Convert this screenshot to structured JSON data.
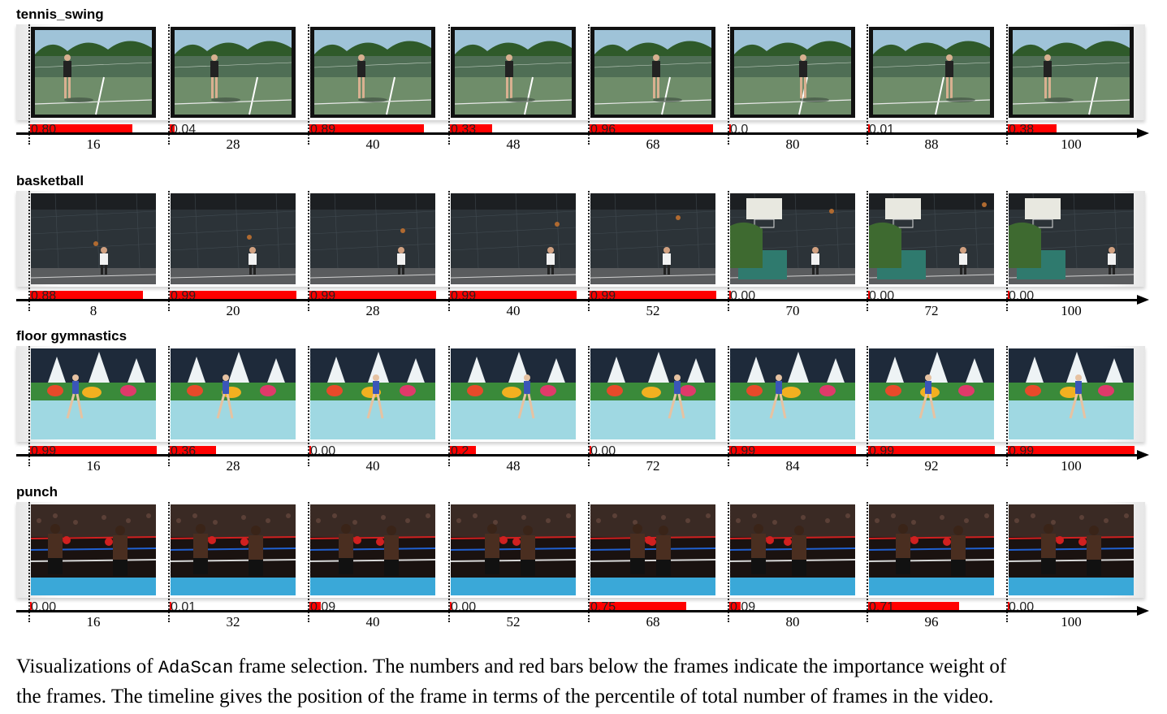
{
  "caption": {
    "line1_a": "Visualizations of ",
    "method": "AdaScan",
    "line1_b": " frame selection. The numbers and red bars below the frames indicate the importance weight of",
    "line2": "the frames. The timeline gives the position of the frame in terms of the percentile of total number of frames in the video."
  },
  "rows": [
    {
      "label": "tennis_swing",
      "scene": "tennis",
      "frames": [
        {
          "weight": 0.8,
          "weight_label": "0.80",
          "percentile": "16"
        },
        {
          "weight": 0.04,
          "weight_label": "0.04",
          "percentile": "28"
        },
        {
          "weight": 0.89,
          "weight_label": "0.89",
          "percentile": "40"
        },
        {
          "weight": 0.33,
          "weight_label": "0.33",
          "percentile": "48"
        },
        {
          "weight": 0.96,
          "weight_label": "0.96",
          "percentile": "68"
        },
        {
          "weight": 0.0,
          "weight_label": "0.0",
          "percentile": "80"
        },
        {
          "weight": 0.01,
          "weight_label": "0.01",
          "percentile": "88"
        },
        {
          "weight": 0.38,
          "weight_label": "0.38",
          "percentile": "100"
        }
      ]
    },
    {
      "label": "basketball",
      "scene": "basketball",
      "frames": [
        {
          "weight": 0.88,
          "weight_label": "0.88",
          "percentile": "8"
        },
        {
          "weight": 0.99,
          "weight_label": "0.99",
          "percentile": "20"
        },
        {
          "weight": 0.99,
          "weight_label": "0.99",
          "percentile": "28"
        },
        {
          "weight": 0.99,
          "weight_label": "0.99",
          "percentile": "40"
        },
        {
          "weight": 0.99,
          "weight_label": "0.99",
          "percentile": "52"
        },
        {
          "weight": 0.0,
          "weight_label": "0.00",
          "percentile": "70"
        },
        {
          "weight": 0.0,
          "weight_label": "0.00",
          "percentile": "72"
        },
        {
          "weight": 0.0,
          "weight_label": "0.00",
          "percentile": "100"
        }
      ]
    },
    {
      "label": "floor gymnastics",
      "scene": "gymnastics",
      "frames": [
        {
          "weight": 0.99,
          "weight_label": "0.99",
          "percentile": "16"
        },
        {
          "weight": 0.36,
          "weight_label": "0.36",
          "percentile": "28"
        },
        {
          "weight": 0.0,
          "weight_label": "0.00",
          "percentile": "40"
        },
        {
          "weight": 0.2,
          "weight_label": "0.2",
          "percentile": "48"
        },
        {
          "weight": 0.0,
          "weight_label": "0.00",
          "percentile": "72"
        },
        {
          "weight": 0.99,
          "weight_label": "0.99",
          "percentile": "84"
        },
        {
          "weight": 0.99,
          "weight_label": "0.99",
          "percentile": "92"
        },
        {
          "weight": 0.99,
          "weight_label": "0.99",
          "percentile": "100"
        }
      ]
    },
    {
      "label": "punch",
      "scene": "boxing",
      "frames": [
        {
          "weight": 0.0,
          "weight_label": "0.00",
          "percentile": "16"
        },
        {
          "weight": 0.01,
          "weight_label": "0.01",
          "percentile": "32"
        },
        {
          "weight": 0.09,
          "weight_label": "0.09",
          "percentile": "40"
        },
        {
          "weight": 0.0,
          "weight_label": "0.00",
          "percentile": "52"
        },
        {
          "weight": 0.75,
          "weight_label": "0.75",
          "percentile": "68"
        },
        {
          "weight": 0.09,
          "weight_label": "0.09",
          "percentile": "80"
        },
        {
          "weight": 0.71,
          "weight_label": "0.71",
          "percentile": "96"
        },
        {
          "weight": 0.0,
          "weight_label": "0.00",
          "percentile": "100"
        }
      ]
    }
  ]
}
